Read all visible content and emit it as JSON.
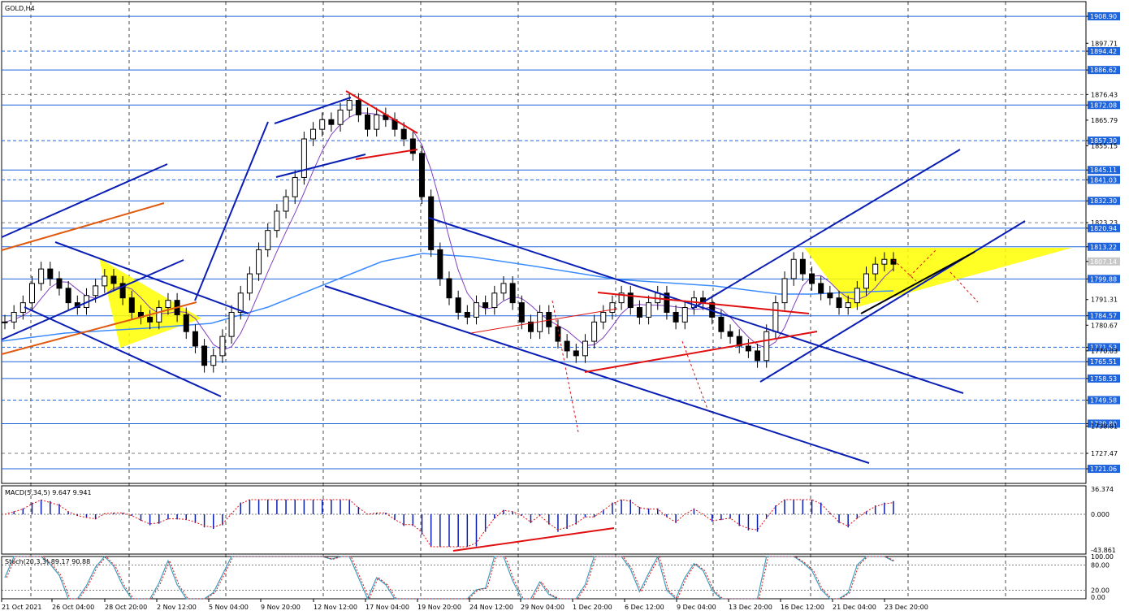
{
  "chart_title": "GOLD,H4",
  "chart_data": [
    {
      "type": "line",
      "title": "GOLD,H4",
      "ylim": [
        1715,
        1915
      ],
      "y_ticks": [
        "1908.90",
        "1897.71",
        "1894.42",
        "1886.62",
        "1876.43",
        "1872.08",
        "1865.79",
        "1857.30",
        "1855.15",
        "1845.11",
        "1841.03",
        "1832.30",
        "1823.23",
        "1820.94",
        "1813.22",
        "1807.14",
        "1799.88",
        "1791.31",
        "1784.57",
        "1780.67",
        "1771.53",
        "1770.03",
        "1765.51",
        "1758.53",
        "1749.58",
        "1739.80",
        "1738.81",
        "1727.47",
        "1721.06"
      ],
      "horizontal_levels": [
        1908.9,
        1894.42,
        1886.62,
        1872.08,
        1857.3,
        1845.11,
        1841.03,
        1832.3,
        1820.94,
        1813.22,
        1799.88,
        1784.57,
        1771.53,
        1765.51,
        1758.53,
        1749.58,
        1739.8,
        1721.06
      ],
      "current_price": "1807.14",
      "x_labels": [
        "21 Oct 2021",
        "26 Oct 04:00",
        "28 Oct 20:00",
        "2 Nov 12:00",
        "5 Nov 04:00",
        "9 Nov 20:00",
        "12 Nov 12:00",
        "17 Nov 04:00",
        "19 Nov 20:00",
        "24 Nov 12:00",
        "29 Nov 04:00",
        "1 Dec 20:00",
        "6 Dec 12:00",
        "9 Dec 04:00",
        "13 Dec 20:00",
        "16 Dec 12:00",
        "21 Dec 04:00",
        "23 Dec 20:00"
      ],
      "series": [
        {
          "values": [
            1782,
            1786,
            1790,
            1798,
            1804,
            1800,
            1796,
            1790,
            1788,
            1793,
            1797,
            1801,
            1798,
            1792,
            1786,
            1784,
            1782,
            1788,
            1791,
            1785,
            1778,
            1772,
            1764,
            1768,
            1776,
            1786,
            1794,
            1802,
            1812,
            1820,
            1828,
            1834,
            1842,
            1858,
            1862,
            1866,
            1864,
            1870,
            1874,
            1868,
            1862,
            1868,
            1866,
            1862,
            1858,
            1852,
            1834,
            1812,
            1800,
            1792,
            1786,
            1784,
            1790,
            1788,
            1794,
            1798,
            1790,
            1782,
            1778,
            1786,
            1780,
            1774,
            1770,
            1768,
            1774,
            1782,
            1786,
            1790,
            1794,
            1788,
            1784,
            1790,
            1794,
            1786,
            1782,
            1788,
            1792,
            1790,
            1784,
            1778,
            1776,
            1772,
            1770,
            1766,
            1778,
            1790,
            1800,
            1808,
            1802,
            1798,
            1794,
            1792,
            1788,
            1790,
            1796,
            1802,
            1806,
            1808,
            1806
          ]
        }
      ]
    },
    {
      "type": "bar",
      "title": "MACD(5,34,5) 9.647 9.941",
      "y_ticks": [
        "36.374",
        "0.000",
        "-43.861"
      ],
      "ylim": [
        -43.861,
        36.374
      ]
    },
    {
      "type": "line",
      "title": "Stoch(20,3,3) 89.17 90.88",
      "y_ticks": [
        "100.00",
        "80.00",
        "20.00",
        "0.00"
      ],
      "ylim": [
        0,
        100
      ]
    }
  ],
  "colors": {
    "candle": "#000000",
    "grid": "#000000",
    "level": "#1e64dc",
    "channel": "#0a1eb4",
    "trend_red": "#e01010",
    "trend_orange": "#e05a10",
    "pattern_fill": "#ffff00",
    "ma_slow": "#3c8cff",
    "ma_fast": "#8040c0",
    "price_tag": "#1e64dc",
    "current_tag": "#c8c8c8",
    "macd_hist": "#0a1eb4",
    "macd_signal": "#e01010",
    "stoch_main": "#3ca0c0",
    "stoch_signal": "#e01010"
  }
}
